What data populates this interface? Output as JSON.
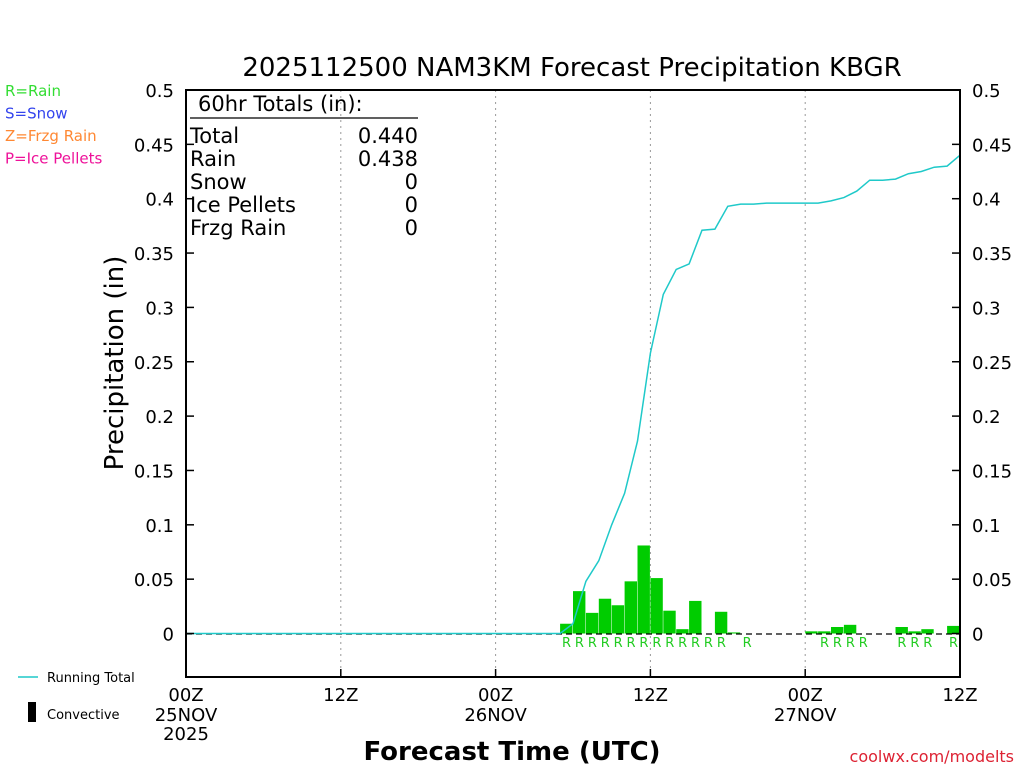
{
  "chart_data": {
    "type": "bar",
    "title": "2025112500 NAM3KM Forecast Precipitation KBGR",
    "xlabel": "Forecast Time (UTC)",
    "ylabel": "Precipitation (in)",
    "ylim": [
      -0.04,
      0.5
    ],
    "xlim": [
      0,
      60
    ],
    "y_ticks": [
      "0",
      "0.05",
      "0.1",
      "0.15",
      "0.2",
      "0.25",
      "0.3",
      "0.35",
      "0.4",
      "0.45",
      "0.5"
    ],
    "y_tick_values": [
      0,
      0.05,
      0.1,
      0.15,
      0.2,
      0.25,
      0.3,
      0.35,
      0.4,
      0.45,
      0.5
    ],
    "x_ticks": [
      {
        "hour": 0,
        "label": "00Z",
        "date": "25NOV",
        "year": "2025"
      },
      {
        "hour": 12,
        "label": "12Z",
        "date": "",
        "year": ""
      },
      {
        "hour": 24,
        "label": "00Z",
        "date": "26NOV",
        "year": ""
      },
      {
        "hour": 36,
        "label": "12Z",
        "date": "",
        "year": ""
      },
      {
        "hour": 48,
        "label": "00Z",
        "date": "27NOV",
        "year": ""
      },
      {
        "hour": 60,
        "label": "12Z",
        "date": "",
        "year": ""
      }
    ],
    "legend": {
      "types": [
        {
          "label": "R=Rain",
          "color": "#33dd33"
        },
        {
          "label": "S=Snow",
          "color": "#3344ee"
        },
        {
          "label": "Z=Frzg Rain",
          "color": "#ff8833"
        },
        {
          "label": "P=Ice Pellets",
          "color": "#ee1199"
        }
      ],
      "running_total": "Running Total",
      "convective": "Convective"
    },
    "totals": {
      "header": "60hr Totals (in):",
      "rows": [
        {
          "label": "Total",
          "value": "0.440"
        },
        {
          "label": "Rain",
          "value": "0.438"
        },
        {
          "label": "Snow",
          "value": "0"
        },
        {
          "label": "Ice Pellets",
          "value": "0"
        },
        {
          "label": "Frzg Rain",
          "value": "0"
        }
      ]
    },
    "series": [
      {
        "name": "Hourly Precipitation",
        "color": "#00cc00",
        "hours": [
          30,
          31,
          32,
          33,
          34,
          35,
          36,
          37,
          38,
          39,
          40,
          41,
          42,
          43,
          44,
          45,
          46,
          47,
          48,
          49,
          50,
          51,
          52,
          53,
          54,
          55,
          56,
          57,
          58,
          59,
          60
        ],
        "values": [
          0.009,
          0.039,
          0.019,
          0.032,
          0.026,
          0.048,
          0.081,
          0.051,
          0.021,
          0.004,
          0.03,
          0,
          0.02,
          0.001,
          0,
          0,
          0,
          0,
          0,
          0.002,
          0.002,
          0.006,
          0.008,
          0,
          0,
          0,
          0.006,
          0.002,
          0.004,
          0,
          0.007
        ]
      },
      {
        "name": "Running Total",
        "color": "#1fc9c9",
        "hours": [
          0,
          29,
          30,
          31,
          32,
          33,
          34,
          35,
          36,
          37,
          38,
          39,
          40,
          41,
          42,
          43,
          44,
          45,
          46,
          47,
          48,
          49,
          50,
          51,
          52,
          53,
          54,
          55,
          56,
          57,
          58,
          59,
          60
        ],
        "values": [
          0,
          0,
          0.009,
          0.048,
          0.067,
          0.1,
          0.129,
          0.177,
          0.258,
          0.312,
          0.335,
          0.34,
          0.371,
          0.372,
          0.393,
          0.395,
          0.395,
          0.396,
          0.396,
          0.396,
          0.396,
          0.396,
          0.398,
          0.401,
          0.407,
          0.417,
          0.417,
          0.418,
          0.423,
          0.425,
          0.429,
          0.43,
          0.44
        ]
      }
    ],
    "precip_type_hours": [
      30,
      31,
      32,
      33,
      34,
      35,
      36,
      37,
      38,
      39,
      40,
      41,
      42,
      44,
      50,
      51,
      52,
      53,
      56,
      57,
      58,
      60
    ],
    "precip_type_letter": "R"
  },
  "source": "coolwx.com/modelts"
}
